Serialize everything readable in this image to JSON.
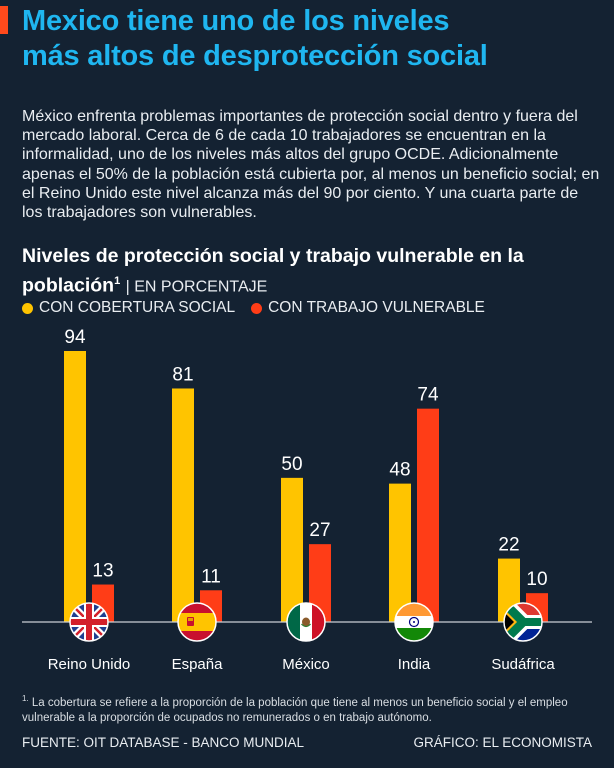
{
  "header": {
    "title_line1": "Mexico tiene uno de los niveles",
    "title_line2": "más altos de desprotección social"
  },
  "intro": "México enfrenta problemas importantes de protección social dentro y fuera del mercado laboral. Cerca de 6 de cada 10 trabajadores se encuentran en la informalidad, uno de los niveles más altos del grupo OCDE. Adicionalmente apenas el 50% de la población está cubierta por, al menos un beneficio social; en el Reino Unido este nivel alcanza más del 90 por ciento. Y una cuarta parte de los trabajadores son vulnerables.",
  "chart_data": {
    "type": "bar",
    "title": "Niveles de protección social y trabajo vulnerable en la población",
    "title_sup": "1",
    "unit": "EN PORCENTAJE",
    "categories": [
      "Reino Unido",
      "España",
      "México",
      "India",
      "Sudáfrica"
    ],
    "flag_icons": [
      "uk-flag-icon",
      "spain-flag-icon",
      "mexico-flag-icon",
      "india-flag-icon",
      "south-africa-flag-icon"
    ],
    "series": [
      {
        "name": "CON COBERTURA SOCIAL",
        "color": "#ffc400",
        "values": [
          94,
          81,
          50,
          48,
          22
        ]
      },
      {
        "name": "CON TRABAJO VULNERABLE",
        "color": "#ff3d17",
        "values": [
          13,
          11,
          27,
          74,
          10
        ]
      }
    ],
    "ylim": [
      0,
      100
    ],
    "grid": false,
    "legend": "top-left"
  },
  "footnote": "La cobertura se refiere a la proporción de la población que tiene al menos un beneficio social y el empleo vulnerable a la proporción de ocupados no remunerados o en trabajo autónomo.",
  "footnote_mark": "1.",
  "source": "FUENTE: OIT DATABASE - BANCO MUNDIAL",
  "credit": "GRÁFICO: EL ECONOMISTA",
  "colors": {
    "title": "#1fb6f0",
    "accent": "#ff4a1c",
    "background": "#142232"
  }
}
